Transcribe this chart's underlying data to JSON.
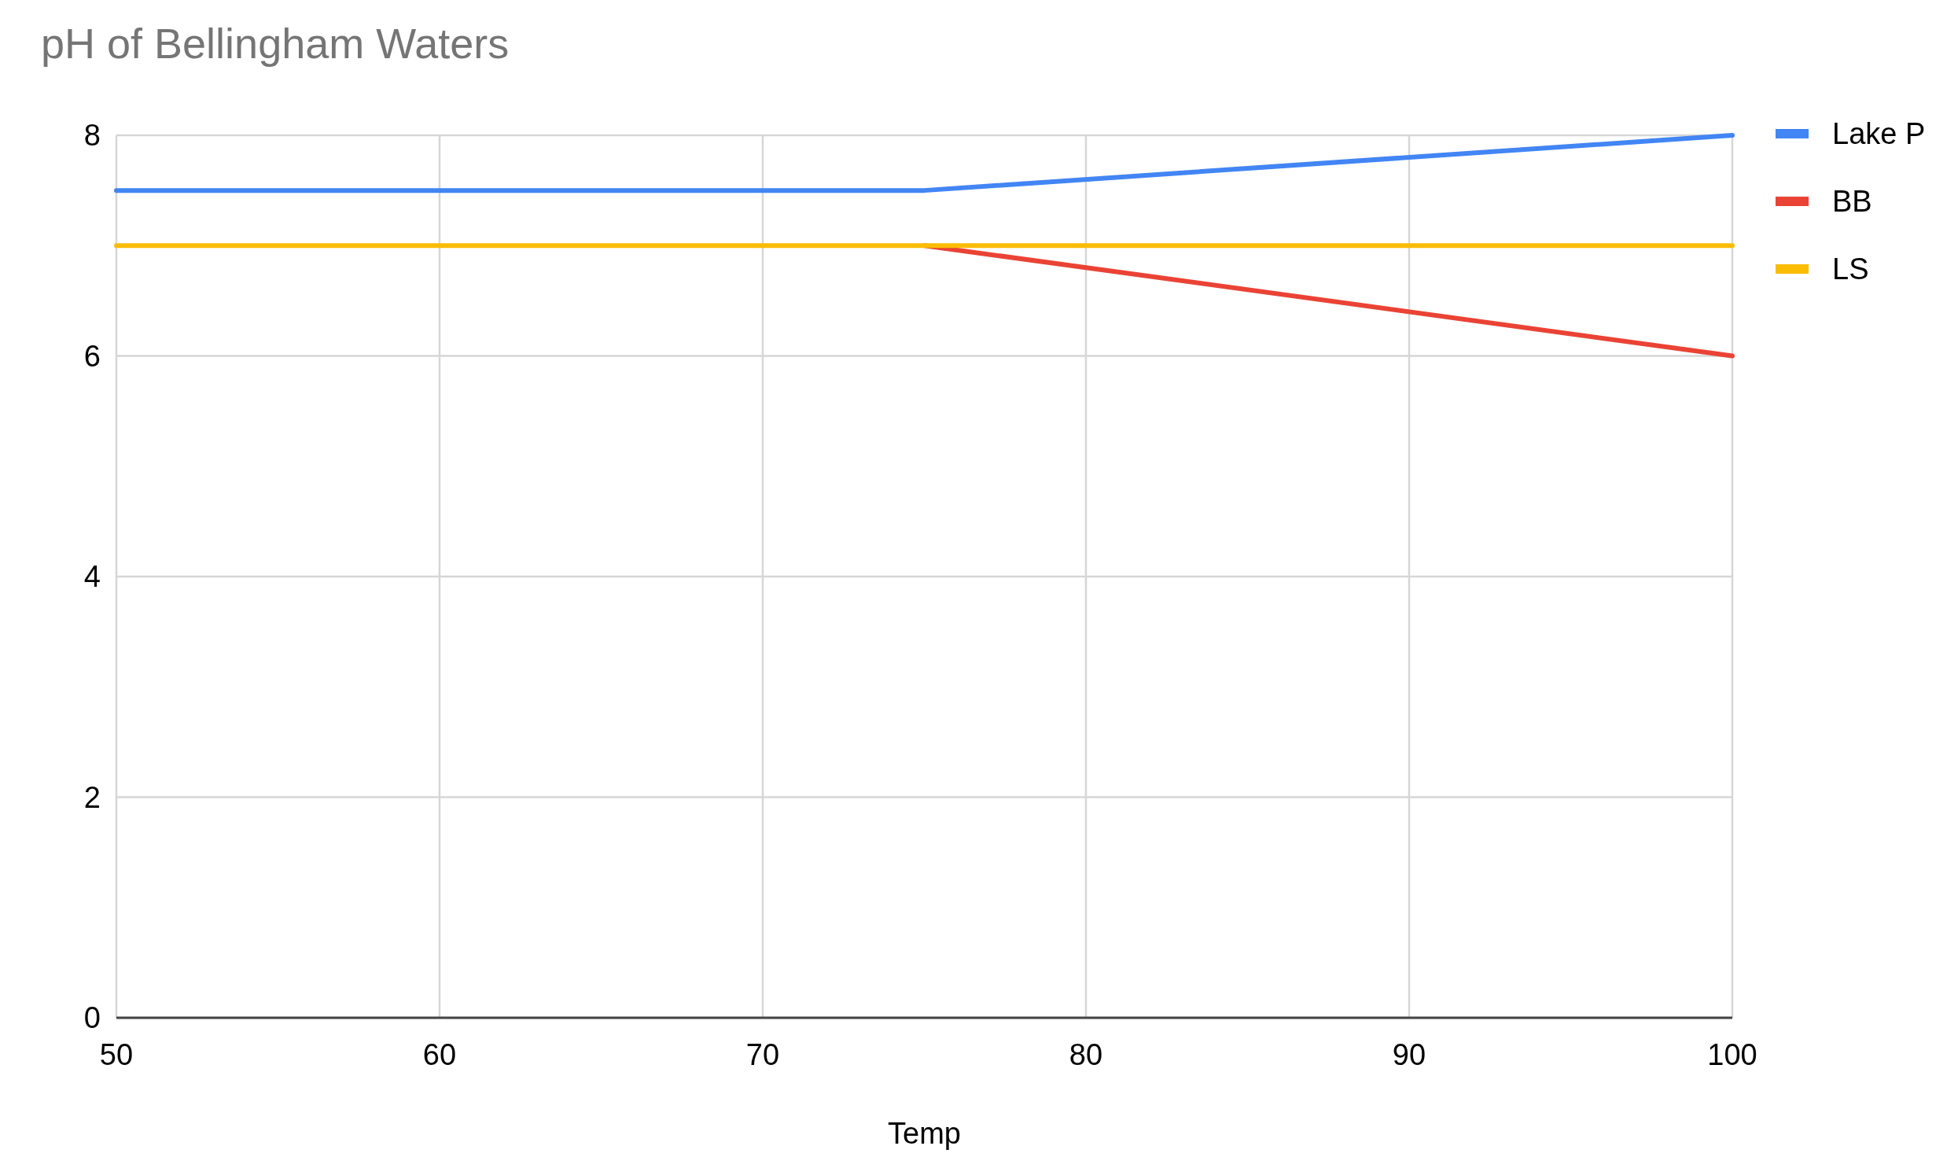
{
  "chart_data": {
    "type": "line",
    "title": "pH of Bellingham Waters",
    "xlabel": "Temp",
    "x": [
      50,
      75,
      100
    ],
    "series": [
      {
        "name": "Lake P",
        "color": "#4285f4",
        "values": [
          7.5,
          7.5,
          8
        ]
      },
      {
        "name": "BB",
        "color": "#ea4335",
        "values": [
          null,
          7,
          6
        ]
      },
      {
        "name": "LS",
        "color": "#fbbc04",
        "values": [
          7,
          7,
          7
        ]
      }
    ],
    "xlim": [
      50,
      100
    ],
    "xticks": [
      50,
      60,
      70,
      80,
      90,
      100
    ],
    "ylim": [
      0,
      8
    ],
    "yticks": [
      0,
      2,
      4,
      6,
      8
    ],
    "grid": true,
    "legend": "right",
    "marker": "none",
    "line_style": "solid"
  }
}
